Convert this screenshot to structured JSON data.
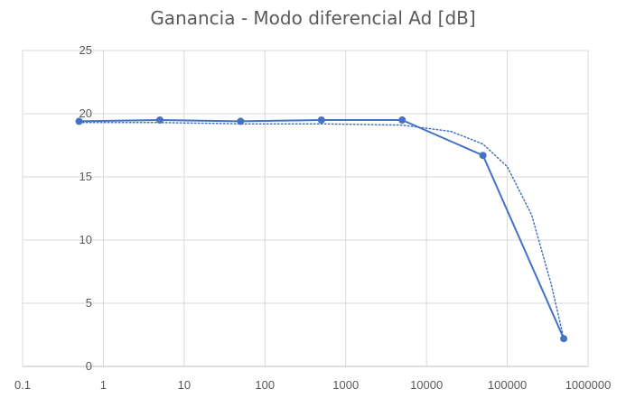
{
  "chart_data": {
    "type": "line",
    "title": "Ganancia - Modo diferencial Ad [dB]",
    "xlabel": "",
    "ylabel": "",
    "x_scale": "log",
    "xlim": [
      0.1,
      1000000
    ],
    "ylim": [
      0,
      25
    ],
    "x_ticks": [
      "0.1",
      "1",
      "10",
      "100",
      "1000",
      "10000",
      "100000",
      "1000000"
    ],
    "y_ticks": [
      "0",
      "5",
      "10",
      "15",
      "20",
      "25"
    ],
    "grid": true,
    "legend": "none",
    "series": [
      {
        "x": [
          0.5,
          5,
          50,
          500,
          5000,
          50000,
          500000
        ],
        "values": [
          19.4,
          19.5,
          19.4,
          19.5,
          19.5,
          16.7,
          2.2
        ],
        "style": "solid-markers",
        "color": "#4472C4"
      },
      {
        "x": [
          0.5,
          5,
          50,
          500,
          5000,
          20000,
          50000,
          100000,
          200000,
          350000,
          500000
        ],
        "values": [
          19.3,
          19.3,
          19.2,
          19.2,
          19.1,
          18.6,
          17.6,
          15.8,
          12.0,
          6.5,
          2.2
        ],
        "style": "dotted-trendline",
        "color": "#4472C4"
      }
    ]
  }
}
